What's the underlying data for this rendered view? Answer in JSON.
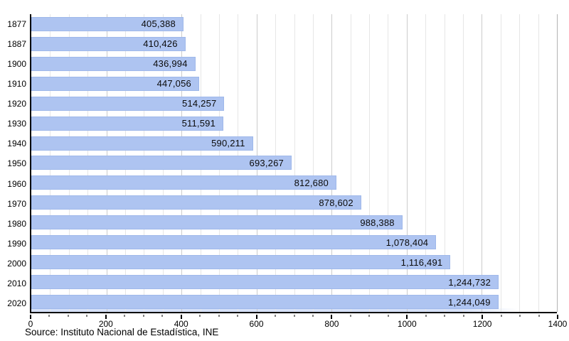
{
  "chart_data": {
    "type": "bar",
    "orientation": "horizontal",
    "title": "",
    "xlabel": "",
    "ylabel": "",
    "categories": [
      "1877",
      "1887",
      "1900",
      "1910",
      "1920",
      "1930",
      "1940",
      "1950",
      "1960",
      "1970",
      "1980",
      "1990",
      "2000",
      "2010",
      "2020"
    ],
    "values": [
      405388,
      410426,
      436994,
      447056,
      514257,
      511591,
      590211,
      693267,
      812680,
      878602,
      988388,
      1078404,
      1116491,
      1244732,
      1244049
    ],
    "value_labels": [
      "405,388",
      "410,426",
      "436,994",
      "447,056",
      "514,257",
      "511,591",
      "590,211",
      "693,267",
      "812,680",
      "878,602",
      "988,388",
      "1,078,404",
      "1,116,491",
      "1,244,732",
      "1,244,049"
    ],
    "xlim": [
      0,
      1400
    ],
    "x_axis_unit_divisor": 1000,
    "x_major_ticks": [
      0,
      200,
      400,
      600,
      800,
      1000,
      1200,
      1400
    ],
    "x_minor_step": 50,
    "grid": "vertical-only",
    "legend_position": "none"
  },
  "source_line": "Source: Instituto Nacional de Estadística, INE",
  "colors": {
    "bar_fill": "#aec4f1",
    "bar_border": "#9fb8ea",
    "grid_minor": "#e6e6e6",
    "grid_major": "#cccccc",
    "axis": "#000000",
    "text": "#000000"
  }
}
